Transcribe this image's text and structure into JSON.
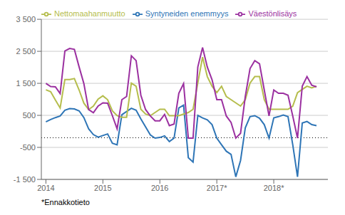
{
  "chart_data": {
    "type": "line",
    "x": [
      2014,
      2014.0833333333,
      2014.1666666667,
      2014.25,
      2014.3333333333,
      2014.4166666667,
      2014.5,
      2014.5833333333,
      2014.6666666667,
      2014.75,
      2014.8333333333,
      2014.9166666667,
      2015,
      2015.0833333333,
      2015.1666666667,
      2015.25,
      2015.3333333333,
      2015.4166666667,
      2015.5,
      2015.5833333333,
      2015.6666666667,
      2015.75,
      2015.8333333333,
      2015.9166666667,
      2016,
      2016.0833333333,
      2016.1666666667,
      2016.25,
      2016.3333333333,
      2016.4166666667,
      2016.5,
      2016.5833333333,
      2016.6666666667,
      2016.75,
      2016.8333333333,
      2016.9166666667,
      2017,
      2017.0833333333,
      2017.1666666667,
      2017.25,
      2017.3333333333,
      2017.4166666667,
      2017.5,
      2017.5833333333,
      2017.6666666667,
      2017.75,
      2017.8333333333,
      2017.9166666667,
      2018,
      2018.0833333333,
      2018.1666666667,
      2018.25,
      2018.3333333333,
      2018.4166666667,
      2018.5,
      2018.5833333333,
      2018.6666666667,
      2018.75
    ],
    "series": [
      {
        "name": "Syntyneiden enemmyys",
        "color": "#2e75b6",
        "values": [
          300,
          370,
          430,
          480,
          660,
          710,
          700,
          640,
          430,
          80,
          -100,
          -180,
          -130,
          -80,
          -370,
          -420,
          520,
          620,
          720,
          660,
          390,
          140,
          -110,
          -210,
          -190,
          -140,
          -320,
          -210,
          730,
          820,
          -820,
          -960,
          500,
          420,
          360,
          210,
          -210,
          -420,
          -620,
          -720,
          -1420,
          -910,
          110,
          460,
          490,
          410,
          210,
          -210,
          420,
          460,
          510,
          460,
          -420,
          -1420,
          260,
          310,
          210,
          180
        ]
      },
      {
        "name": "Nettomaahanmuutto",
        "color": "#b5bd4c",
        "values": [
          1300,
          1240,
          980,
          730,
          1620,
          1620,
          1650,
          1290,
          880,
          680,
          790,
          1010,
          1110,
          990,
          640,
          490,
          440,
          440,
          1510,
          1410,
          690,
          540,
          490,
          590,
          690,
          690,
          490,
          490,
          490,
          540,
          590,
          690,
          1510,
          2320,
          1710,
          1410,
          1210,
          1410,
          1090,
          990,
          890,
          790,
          990,
          1510,
          1710,
          1710,
          990,
          690,
          690,
          690,
          690,
          690,
          790,
          1210,
          1310,
          1410,
          1360,
          1410
        ]
      },
      {
        "name": "Väestönlisäys",
        "color": "#9b30a0",
        "values": [
          1500,
          1400,
          1390,
          1180,
          2510,
          2590,
          2560,
          2010,
          1490,
          680,
          580,
          790,
          890,
          880,
          490,
          80,
          990,
          1090,
          2360,
          2210,
          1130,
          680,
          480,
          330,
          330,
          530,
          180,
          230,
          1190,
          1490,
          -210,
          -210,
          2010,
          2620,
          2010,
          1610,
          990,
          990,
          480,
          280,
          -210,
          -60,
          1090,
          1960,
          2210,
          2110,
          1290,
          480,
          1290,
          1190,
          1190,
          1130,
          480,
          -210,
          1410,
          1710,
          1440,
          1390
        ]
      }
    ],
    "xlim": [
      2013.92,
      2018.95
    ],
    "xticks": [
      2014,
      2015,
      2016,
      {
        "value": 2017,
        "label": "2017*"
      },
      {
        "value": 2018,
        "label": "2018*"
      }
    ],
    "ylim": [
      -1500,
      3500
    ],
    "yticks": [
      {
        "value": -1500,
        "label": "-1 500"
      },
      -500,
      500,
      {
        "value": 1500,
        "label": "1 500"
      },
      {
        "value": 2500,
        "label": "2 500"
      },
      {
        "value": 3500,
        "label": "3 500"
      }
    ],
    "reference_lines": [
      {
        "y": -200,
        "line_style": "dotted",
        "color": "#000000"
      }
    ],
    "grid": true,
    "legend": "top-left",
    "footnote": "*Ennakkotieto"
  }
}
